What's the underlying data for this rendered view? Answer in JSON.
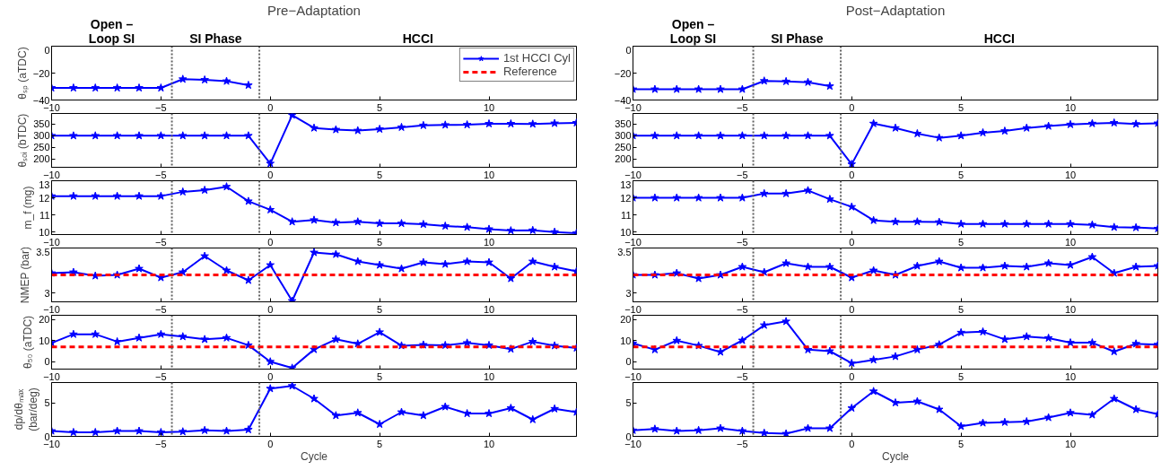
{
  "chart_data": [
    {
      "type": "line",
      "title": "Pre−Adaptation",
      "ylabel": "θₛₚ (aTDC)",
      "annotations": [
        "Open –\nLoop SI",
        "SI Phase",
        "HCCI"
      ],
      "legend": "top right",
      "series": [
        {
          "name": "1st HCCI Cyl",
          "color": "#0000ff",
          "marker": "star",
          "x": [
            -10,
            -9,
            -8,
            -7,
            -6,
            -5,
            -4,
            -3,
            -2,
            -1
          ],
          "values": [
            -31,
            -31,
            -31,
            -31,
            -31,
            -31,
            -24.5,
            -25,
            -26,
            -29
          ]
        },
        {
          "name": "Reference",
          "color": "#ff0000",
          "marker": "none",
          "line_style": "dashed"
        }
      ],
      "xlim": [
        -10,
        14
      ],
      "xticks": [
        -10,
        -5,
        0,
        5,
        10
      ],
      "ylim": [
        -40,
        0
      ],
      "yticks": [
        -40,
        -20,
        0
      ],
      "ref_lines": [
        {
          "axis": "x",
          "value": -4.5,
          "color": "#606060",
          "line_style": "dotted"
        },
        {
          "axis": "x",
          "value": -0.5,
          "color": "#606060",
          "line_style": "dotted"
        }
      ]
    },
    {
      "type": "line",
      "title": "Post−Adaptation",
      "annotations": [
        "Open –\nLoop SI",
        "SI Phase",
        "HCCI"
      ],
      "series": [
        {
          "color": "#0000ff",
          "marker": "star",
          "x": [
            -10,
            -9,
            -8,
            -7,
            -6,
            -5,
            -4,
            -3,
            -2,
            -1
          ],
          "values": [
            -32,
            -32,
            -32,
            -32,
            -32,
            -32,
            -25.8,
            -26.2,
            -26.8,
            -29.7
          ]
        }
      ],
      "xlim": [
        -10,
        14
      ],
      "xticks": [
        -10,
        -5,
        0,
        5,
        10
      ],
      "ylim": [
        -40,
        0
      ],
      "yticks": [
        -40,
        -20,
        0
      ],
      "ref_lines": [
        {
          "axis": "x",
          "value": -4.5,
          "color": "#606060",
          "line_style": "dotted"
        },
        {
          "axis": "x",
          "value": -0.5,
          "color": "#606060",
          "line_style": "dotted"
        }
      ]
    },
    {
      "type": "line",
      "ylabel": "θₛₒᵢ (bTDC)",
      "x": [
        -10,
        -9,
        -8,
        -7,
        -6,
        -5,
        -4,
        -3,
        -2,
        -1,
        0,
        1,
        2,
        3,
        4,
        5,
        6,
        7,
        8,
        9,
        10,
        11,
        12,
        13,
        14
      ],
      "series": [
        {
          "color": "#0000ff",
          "marker": "star",
          "values": [
            300,
            300,
            300,
            300,
            300,
            300,
            300,
            300,
            300,
            300,
            181,
            388,
            333,
            326,
            322,
            328,
            336,
            344,
            346,
            347,
            351,
            351,
            350,
            353,
            355
          ]
        }
      ],
      "xlim": [
        -10,
        14
      ],
      "xticks": [
        -10,
        -5,
        0,
        5,
        10
      ],
      "ylim": [
        165,
        395
      ],
      "yticks": [
        200,
        250,
        300,
        350
      ],
      "ref_lines": [
        {
          "axis": "x",
          "value": -4.5,
          "color": "#606060",
          "line_style": "dotted"
        },
        {
          "axis": "x",
          "value": -0.5,
          "color": "#606060",
          "line_style": "dotted"
        }
      ]
    },
    {
      "type": "line",
      "x": [
        -10,
        -9,
        -8,
        -7,
        -6,
        -5,
        -4,
        -3,
        -2,
        -1,
        0,
        1,
        2,
        3,
        4,
        5,
        6,
        7,
        8,
        9,
        10,
        11,
        12,
        13,
        14
      ],
      "series": [
        {
          "color": "#0000ff",
          "marker": "star",
          "values": [
            300,
            300,
            300,
            300,
            300,
            300,
            300,
            300,
            300,
            300,
            178,
            352,
            333,
            309,
            291,
            300,
            313,
            320,
            333,
            341,
            348,
            352,
            355,
            350,
            353
          ]
        }
      ],
      "xlim": [
        -10,
        14
      ],
      "xticks": [
        -10,
        -5,
        0,
        5,
        10
      ],
      "ylim": [
        165,
        395
      ],
      "yticks": [
        200,
        250,
        300,
        350
      ],
      "ref_lines": [
        {
          "axis": "x",
          "value": -4.5,
          "color": "#606060",
          "line_style": "dotted"
        },
        {
          "axis": "x",
          "value": -0.5,
          "color": "#606060",
          "line_style": "dotted"
        }
      ]
    },
    {
      "type": "line",
      "ylabel": "m_f (mg)",
      "x": [
        -10,
        -9,
        -8,
        -7,
        -6,
        -5,
        -4,
        -3,
        -2,
        -1,
        0,
        1,
        2,
        3,
        4,
        5,
        6,
        7,
        8,
        9,
        10,
        11,
        12,
        13,
        14
      ],
      "series": [
        {
          "color": "#0000ff",
          "marker": "star",
          "values": [
            12.1,
            12.1,
            12.1,
            12.1,
            12.1,
            12.1,
            12.35,
            12.45,
            12.65,
            11.8,
            11.3,
            10.6,
            10.7,
            10.55,
            10.6,
            10.5,
            10.5,
            10.45,
            10.35,
            10.28,
            10.17,
            10.08,
            10.1,
            10.0,
            9.93
          ]
        }
      ],
      "xlim": [
        -10,
        14
      ],
      "xticks": [
        -10,
        -5,
        0,
        5,
        10
      ],
      "ylim": [
        9.85,
        13
      ],
      "yticks": [
        10,
        11,
        12,
        13
      ],
      "ref_lines": [
        {
          "axis": "x",
          "value": -4.5,
          "color": "#606060",
          "line_style": "dotted"
        },
        {
          "axis": "x",
          "value": -0.5,
          "color": "#606060",
          "line_style": "dotted"
        }
      ]
    },
    {
      "type": "line",
      "x": [
        -10,
        -9,
        -8,
        -7,
        -6,
        -5,
        -4,
        -3,
        -2,
        -1,
        0,
        1,
        2,
        3,
        4,
        5,
        6,
        7,
        8,
        9,
        10,
        11,
        12,
        13,
        14
      ],
      "series": [
        {
          "color": "#0000ff",
          "marker": "star",
          "values": [
            12.0,
            12.0,
            12.0,
            12.0,
            12.0,
            12.0,
            12.25,
            12.25,
            12.43,
            11.92,
            11.47,
            10.68,
            10.6,
            10.6,
            10.58,
            10.47,
            10.47,
            10.47,
            10.47,
            10.47,
            10.47,
            10.42,
            10.28,
            10.26,
            10.2
          ]
        }
      ],
      "xlim": [
        -10,
        14
      ],
      "xticks": [
        -10,
        -5,
        0,
        5,
        10
      ],
      "ylim": [
        9.85,
        13
      ],
      "yticks": [
        10,
        11,
        12,
        13
      ],
      "ref_lines": [
        {
          "axis": "x",
          "value": -4.5,
          "color": "#606060",
          "line_style": "dotted"
        },
        {
          "axis": "x",
          "value": -0.5,
          "color": "#606060",
          "line_style": "dotted"
        }
      ]
    },
    {
      "type": "line",
      "ylabel": "NMEP (bar)",
      "x": [
        -10,
        -9,
        -8,
        -7,
        -6,
        -5,
        -4,
        -3,
        -2,
        -1,
        0,
        1,
        2,
        3,
        4,
        5,
        6,
        7,
        8,
        9,
        10,
        11,
        12,
        13,
        14
      ],
      "series": [
        {
          "color": "#0000ff",
          "marker": "star",
          "values": [
            3.22,
            3.23,
            3.19,
            3.2,
            3.27,
            3.17,
            3.23,
            3.41,
            3.25,
            3.14,
            3.31,
            2.91,
            3.45,
            3.43,
            3.35,
            3.31,
            3.27,
            3.34,
            3.32,
            3.35,
            3.34,
            3.16,
            3.35,
            3.29,
            3.24
          ]
        },
        {
          "color": "#ff0000",
          "marker": "none",
          "line_style": "dashed",
          "values": [
            3.2,
            3.2,
            3.2,
            3.2,
            3.2,
            3.2,
            3.2,
            3.2,
            3.2,
            3.2,
            3.2,
            3.2,
            3.2,
            3.2,
            3.2,
            3.2,
            3.2,
            3.2,
            3.2,
            3.2,
            3.2,
            3.2,
            3.2,
            3.2,
            3.2
          ]
        }
      ],
      "xlim": [
        -10,
        14
      ],
      "xticks": [
        -10,
        -5,
        0,
        5,
        10
      ],
      "ylim": [
        2.9,
        3.5
      ],
      "yticks": [
        3,
        3.5
      ],
      "ref_lines": [
        {
          "axis": "x",
          "value": -4.5,
          "color": "#606060",
          "line_style": "dotted"
        },
        {
          "axis": "x",
          "value": -0.5,
          "color": "#606060",
          "line_style": "dotted"
        }
      ]
    },
    {
      "type": "line",
      "x": [
        -10,
        -9,
        -8,
        -7,
        -6,
        -5,
        -4,
        -3,
        -2,
        -1,
        0,
        1,
        2,
        3,
        4,
        5,
        6,
        7,
        8,
        9,
        10,
        11,
        12,
        13,
        14
      ],
      "series": [
        {
          "color": "#0000ff",
          "marker": "star",
          "values": [
            3.2,
            3.2,
            3.22,
            3.16,
            3.2,
            3.29,
            3.23,
            3.33,
            3.29,
            3.29,
            3.17,
            3.25,
            3.2,
            3.3,
            3.35,
            3.28,
            3.28,
            3.3,
            3.29,
            3.33,
            3.31,
            3.4,
            3.22,
            3.29,
            3.3
          ]
        },
        {
          "color": "#ff0000",
          "marker": "none",
          "line_style": "dashed",
          "values": [
            3.2,
            3.2,
            3.2,
            3.2,
            3.2,
            3.2,
            3.2,
            3.2,
            3.2,
            3.2,
            3.2,
            3.2,
            3.2,
            3.2,
            3.2,
            3.2,
            3.2,
            3.2,
            3.2,
            3.2,
            3.2,
            3.2,
            3.2,
            3.2,
            3.2
          ]
        }
      ],
      "xlim": [
        -10,
        14
      ],
      "xticks": [
        -10,
        -5,
        0,
        5,
        10
      ],
      "ylim": [
        2.9,
        3.5
      ],
      "yticks": [
        3,
        3.5
      ],
      "ref_lines": [
        {
          "axis": "x",
          "value": -4.5,
          "color": "#606060",
          "line_style": "dotted"
        },
        {
          "axis": "x",
          "value": -0.5,
          "color": "#606060",
          "line_style": "dotted"
        }
      ]
    },
    {
      "type": "line",
      "ylabel": "θ₅₀ (aTDC)",
      "x": [
        -10,
        -9,
        -8,
        -7,
        -6,
        -5,
        -4,
        -3,
        -2,
        -1,
        0,
        1,
        2,
        3,
        4,
        5,
        6,
        7,
        8,
        9,
        10,
        11,
        12,
        13,
        14
      ],
      "series": [
        {
          "color": "#0000ff",
          "marker": "star",
          "values": [
            8.9,
            13,
            13,
            9.5,
            11.3,
            13,
            11.9,
            10.6,
            11.3,
            7.8,
            0,
            -3,
            5.8,
            10.6,
            8.5,
            14,
            7.6,
            8,
            7.8,
            8.9,
            7.8,
            6,
            9.5,
            7.6,
            6.5
          ]
        },
        {
          "color": "#ff0000",
          "marker": "none",
          "line_style": "dashed",
          "values": [
            7,
            7,
            7,
            7,
            7,
            7,
            7,
            7,
            7,
            7,
            7,
            7,
            7,
            7,
            7,
            7,
            7,
            7,
            7,
            7,
            7,
            7,
            7,
            7,
            7
          ]
        }
      ],
      "xlim": [
        -10,
        14
      ],
      "xticks": [
        -10,
        -5,
        0,
        5,
        10
      ],
      "ylim": [
        -3.5,
        22
      ],
      "yticks": [
        0,
        10,
        20
      ],
      "ref_lines": [
        {
          "axis": "x",
          "value": -4.5,
          "color": "#606060",
          "line_style": "dotted"
        },
        {
          "axis": "x",
          "value": -0.5,
          "color": "#606060",
          "line_style": "dotted"
        }
      ]
    },
    {
      "type": "line",
      "x": [
        -10,
        -9,
        -8,
        -7,
        -6,
        -5,
        -4,
        -3,
        -2,
        -1,
        0,
        1,
        2,
        3,
        4,
        5,
        6,
        7,
        8,
        9,
        10,
        11,
        12,
        13,
        14
      ],
      "series": [
        {
          "color": "#0000ff",
          "marker": "star",
          "values": [
            8.7,
            5.7,
            10,
            7.6,
            4.6,
            10.1,
            17.3,
            19.1,
            5.7,
            5,
            -0.7,
            0.9,
            2.5,
            5.7,
            8.1,
            13.8,
            14.2,
            10.6,
            11.9,
            11.2,
            9,
            9,
            4.8,
            8.5,
            8.1
          ]
        },
        {
          "color": "#ff0000",
          "marker": "none",
          "line_style": "dashed",
          "values": [
            7,
            7,
            7,
            7,
            7,
            7,
            7,
            7,
            7,
            7,
            7,
            7,
            7,
            7,
            7,
            7,
            7,
            7,
            7,
            7,
            7,
            7,
            7,
            7,
            7
          ]
        }
      ],
      "xlim": [
        -10,
        14
      ],
      "xticks": [
        -10,
        -5,
        0,
        5,
        10
      ],
      "ylim": [
        -3.5,
        22
      ],
      "yticks": [
        0,
        10,
        20
      ],
      "ref_lines": [
        {
          "axis": "x",
          "value": -4.5,
          "color": "#606060",
          "line_style": "dotted"
        },
        {
          "axis": "x",
          "value": -0.5,
          "color": "#606060",
          "line_style": "dotted"
        }
      ]
    },
    {
      "type": "line",
      "ylabel": "dp/dθₘₐₓ\n(bar/deg)",
      "xlabel": "Cycle",
      "x": [
        -10,
        -9,
        -8,
        -7,
        -6,
        -5,
        -4,
        -3,
        -2,
        -1,
        0,
        1,
        2,
        3,
        4,
        5,
        6,
        7,
        8,
        9,
        10,
        11,
        12,
        13,
        14
      ],
      "series": [
        {
          "color": "#0000ff",
          "marker": "star",
          "values": [
            0.8,
            0.6,
            0.6,
            0.8,
            0.8,
            0.6,
            0.7,
            0.9,
            0.8,
            1.0,
            7.1,
            7.5,
            5.6,
            3.1,
            3.5,
            1.8,
            3.6,
            3.1,
            4.4,
            3.4,
            3.4,
            4.2,
            2.5,
            4.1,
            3.6
          ]
        }
      ],
      "xlim": [
        -10,
        14
      ],
      "xticks": [
        -10,
        -5,
        0,
        5,
        10
      ],
      "ylim": [
        0,
        8
      ],
      "yticks": [
        0,
        5
      ],
      "ref_lines": [
        {
          "axis": "x",
          "value": -4.5,
          "color": "#606060",
          "line_style": "dotted"
        },
        {
          "axis": "x",
          "value": -0.5,
          "color": "#606060",
          "line_style": "dotted"
        }
      ]
    },
    {
      "type": "line",
      "xlabel": "Cycle",
      "x": [
        -10,
        -9,
        -8,
        -7,
        -6,
        -5,
        -4,
        -3,
        -2,
        -1,
        0,
        1,
        2,
        3,
        4,
        5,
        6,
        7,
        8,
        9,
        10,
        11,
        12,
        13,
        14
      ],
      "series": [
        {
          "color": "#0000ff",
          "marker": "star",
          "values": [
            0.9,
            1.1,
            0.8,
            0.9,
            1.2,
            0.8,
            0.5,
            0.4,
            1.2,
            1.2,
            4.2,
            6.7,
            5.0,
            5.2,
            4.0,
            1.5,
            2.0,
            2.1,
            2.2,
            2.8,
            3.5,
            3.2,
            5.6,
            4.0,
            3.3
          ]
        }
      ],
      "xlim": [
        -10,
        14
      ],
      "xticks": [
        -10,
        -5,
        0,
        5,
        10
      ],
      "ylim": [
        0,
        8
      ],
      "yticks": [
        0,
        5
      ],
      "ref_lines": [
        {
          "axis": "x",
          "value": -4.5,
          "color": "#606060",
          "line_style": "dotted"
        },
        {
          "axis": "x",
          "value": -0.5,
          "color": "#606060",
          "line_style": "dotted"
        }
      ]
    }
  ]
}
